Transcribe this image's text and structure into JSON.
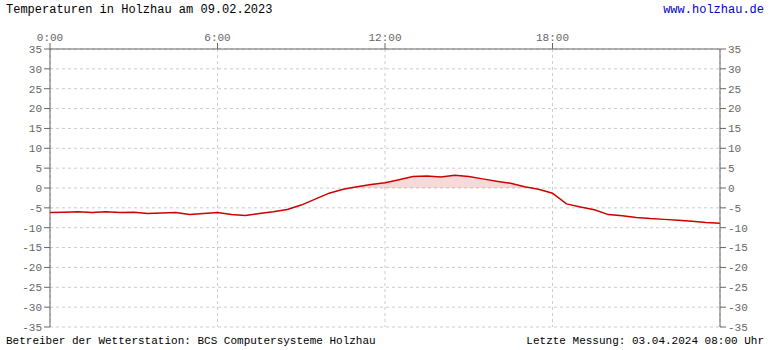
{
  "chart_data": {
    "type": "line",
    "title": "Temperaturen in Holzhau am 09.02.2023",
    "annotations": [
      {
        "text": "www.holzhau.de",
        "color": "#0000cc",
        "position": "top-right"
      },
      {
        "text": "Betreiber der Wetterstation: BCS Computersysteme Holzhau",
        "position": "bottom-left"
      },
      {
        "text": "Letzte Messung: 03.04.2024 08:00 Uhr",
        "position": "bottom-right"
      }
    ],
    "x": [
      0.0,
      0.5,
      1.0,
      1.5,
      2.0,
      2.5,
      3.0,
      3.5,
      4.0,
      4.5,
      5.0,
      5.5,
      6.0,
      6.5,
      7.0,
      7.5,
      8.0,
      8.5,
      9.0,
      9.5,
      10.0,
      10.5,
      11.0,
      11.5,
      12.0,
      12.5,
      13.0,
      13.5,
      14.0,
      14.5,
      15.0,
      15.5,
      16.0,
      16.5,
      17.0,
      17.5,
      18.0,
      18.5,
      19.0,
      19.5,
      20.0,
      20.5,
      21.0,
      21.5,
      22.0,
      22.5,
      23.0,
      23.5,
      24.0
    ],
    "values": [
      -6.2,
      -6.1,
      -6.0,
      -6.2,
      -6.0,
      -6.2,
      -6.1,
      -6.4,
      -6.3,
      -6.2,
      -6.7,
      -6.4,
      -6.2,
      -6.7,
      -6.9,
      -6.4,
      -6.0,
      -5.4,
      -4.3,
      -2.8,
      -1.3,
      -0.3,
      0.3,
      0.9,
      1.3,
      2.1,
      2.9,
      3.0,
      2.8,
      3.2,
      2.9,
      2.3,
      1.7,
      1.2,
      0.3,
      -0.3,
      -1.3,
      -4.0,
      -4.8,
      -5.5,
      -6.7,
      -7.0,
      -7.4,
      -7.7,
      -7.9,
      -8.1,
      -8.4,
      -8.7,
      -8.9
    ],
    "color": "#cc0000",
    "xlim": [
      0,
      24
    ],
    "xticks": [
      {
        "value": 0,
        "label": "0:00"
      },
      {
        "value": 6,
        "label": "6:00"
      },
      {
        "value": 12,
        "label": "12:00"
      },
      {
        "value": 18,
        "label": "18:00"
      }
    ],
    "ylim": [
      -35,
      35
    ],
    "yticks": [
      -35,
      -30,
      -25,
      -20,
      -15,
      -10,
      -5,
      0,
      5,
      10,
      15,
      20,
      25,
      30,
      35
    ],
    "grid": true
  }
}
